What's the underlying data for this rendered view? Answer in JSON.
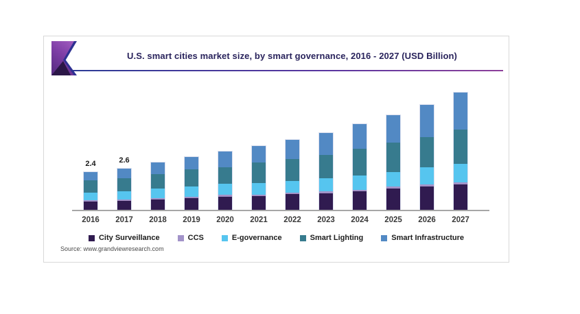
{
  "header": {
    "title": "U.S. smart cities market size, by smart governance, 2016 - 2027 (USD Billion)",
    "logo": "grand-view-research-logo-mark"
  },
  "chart_data": {
    "type": "bar",
    "stacked": true,
    "title": "U.S. smart cities market size, by smart governance, 2016 - 2027 (USD Billion)",
    "unit": "USD Billion",
    "xlabel": "",
    "ylabel": "",
    "ylim": [
      0,
      8
    ],
    "grid": false,
    "legend_position": "bottom",
    "stack_order": "bottom-to-top",
    "x_categories": [
      "2016",
      "2017",
      "2018",
      "2019",
      "2020",
      "2021",
      "2022",
      "2023",
      "2024",
      "2025",
      "2026",
      "2027"
    ],
    "series": [
      {
        "name": "City Surveillance",
        "color": "#301b50",
        "values": [
          0.53,
          0.57,
          0.64,
          0.74,
          0.84,
          0.87,
          0.99,
          1.06,
          1.18,
          1.35,
          1.5,
          1.61
        ]
      },
      {
        "name": "CCS",
        "color": "#a293c9",
        "values": [
          0.07,
          0.1,
          0.1,
          0.1,
          0.12,
          0.1,
          0.12,
          0.12,
          0.1,
          0.12,
          0.14,
          0.13
        ]
      },
      {
        "name": "E-governance",
        "color": "#56c5ef",
        "values": [
          0.51,
          0.52,
          0.62,
          0.63,
          0.69,
          0.73,
          0.73,
          0.83,
          0.92,
          0.94,
          1.06,
          1.18
        ]
      },
      {
        "name": "Smart Lighting",
        "color": "#377b8e",
        "values": [
          0.75,
          0.84,
          0.9,
          1.09,
          1.06,
          1.31,
          1.38,
          1.5,
          1.68,
          1.89,
          1.92,
          2.18
        ]
      },
      {
        "name": "Smart Infrastructure",
        "color": "#5289c4",
        "values": [
          0.54,
          0.57,
          0.76,
          0.8,
          1.02,
          1.06,
          1.24,
          1.38,
          1.6,
          1.75,
          2.08,
          2.36
        ]
      }
    ],
    "totals_estimated": [
      2.4,
      2.6,
      3.02,
      3.36,
      3.73,
      4.07,
      4.46,
      4.89,
      5.48,
      6.05,
      6.7,
      7.46
    ],
    "bar_value_labels": [
      "2.4",
      "2.6",
      "",
      "",
      "",
      "",
      "",
      "",
      "",
      "",
      "",
      ""
    ],
    "axis_color": "#a6a6a6"
  },
  "source": "Source: www.grandviewresearch.com",
  "colors": {
    "title_text": "#29235c",
    "underline_gradient_start": "#2b3a95",
    "underline_gradient_end": "#8c3f9a",
    "card_border": "#d8d8d8"
  }
}
